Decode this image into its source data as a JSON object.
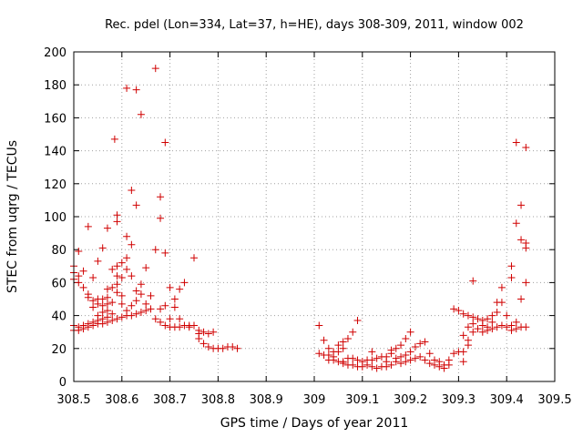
{
  "chart_data": {
    "type": "scatter",
    "title": "Rec. pdel (Lon=334, Lat=37, h=HE), days 308-309, 2011, window 002",
    "xlabel": "GPS time / Days of year 2011",
    "ylabel": "STEC from uqrg / TECUs",
    "xlim": [
      308.5,
      309.5
    ],
    "ylim": [
      0,
      200
    ],
    "xticks": [
      "308.5",
      "308.6",
      "308.7",
      "308.8",
      "308.9",
      "309",
      "309.1",
      "309.2",
      "309.3",
      "309.4",
      "309.5"
    ],
    "yticks": [
      "0",
      "20",
      "40",
      "60",
      "80",
      "100",
      "120",
      "140",
      "160",
      "180",
      "200"
    ],
    "grid": true,
    "marker": "+",
    "color": "#d00000",
    "points": [
      [
        308.5,
        31
      ],
      [
        308.5,
        34
      ],
      [
        308.5,
        62
      ],
      [
        308.5,
        66
      ],
      [
        308.5,
        70
      ],
      [
        308.51,
        31
      ],
      [
        308.51,
        33
      ],
      [
        308.51,
        60
      ],
      [
        308.51,
        64
      ],
      [
        308.51,
        79
      ],
      [
        308.52,
        32
      ],
      [
        308.52,
        34
      ],
      [
        308.52,
        57
      ],
      [
        308.52,
        67
      ],
      [
        308.53,
        33
      ],
      [
        308.53,
        35
      ],
      [
        308.53,
        51
      ],
      [
        308.53,
        53
      ],
      [
        308.53,
        94
      ],
      [
        308.54,
        34
      ],
      [
        308.54,
        36
      ],
      [
        308.54,
        45
      ],
      [
        308.54,
        49
      ],
      [
        308.54,
        63
      ],
      [
        308.55,
        35
      ],
      [
        308.55,
        37
      ],
      [
        308.55,
        40
      ],
      [
        308.55,
        47
      ],
      [
        308.55,
        50
      ],
      [
        308.55,
        73
      ],
      [
        308.56,
        35
      ],
      [
        308.56,
        38
      ],
      [
        308.56,
        42
      ],
      [
        308.56,
        46
      ],
      [
        308.56,
        50
      ],
      [
        308.56,
        81
      ],
      [
        308.57,
        36
      ],
      [
        308.57,
        39
      ],
      [
        308.57,
        43
      ],
      [
        308.57,
        47
      ],
      [
        308.57,
        51
      ],
      [
        308.57,
        56
      ],
      [
        308.57,
        93
      ],
      [
        308.58,
        37
      ],
      [
        308.58,
        41
      ],
      [
        308.58,
        48
      ],
      [
        308.58,
        57
      ],
      [
        308.58,
        68
      ],
      [
        308.585,
        147
      ],
      [
        308.59,
        38
      ],
      [
        308.59,
        54
      ],
      [
        308.59,
        59
      ],
      [
        308.59,
        64
      ],
      [
        308.59,
        70
      ],
      [
        308.59,
        97
      ],
      [
        308.59,
        101
      ],
      [
        308.6,
        39
      ],
      [
        308.6,
        47
      ],
      [
        308.6,
        52
      ],
      [
        308.6,
        63
      ],
      [
        308.6,
        72
      ],
      [
        308.61,
        40
      ],
      [
        308.61,
        43
      ],
      [
        308.61,
        68
      ],
      [
        308.61,
        75
      ],
      [
        308.61,
        88
      ],
      [
        308.61,
        178
      ],
      [
        308.62,
        40
      ],
      [
        308.62,
        46
      ],
      [
        308.62,
        64
      ],
      [
        308.62,
        83
      ],
      [
        308.62,
        116
      ],
      [
        308.63,
        41
      ],
      [
        308.63,
        49
      ],
      [
        308.63,
        55
      ],
      [
        308.63,
        107
      ],
      [
        308.63,
        177
      ],
      [
        308.64,
        42
      ],
      [
        308.64,
        53
      ],
      [
        308.64,
        59
      ],
      [
        308.64,
        162
      ],
      [
        308.65,
        43
      ],
      [
        308.65,
        47
      ],
      [
        308.65,
        69
      ],
      [
        308.66,
        44
      ],
      [
        308.66,
        52
      ],
      [
        308.67,
        38
      ],
      [
        308.67,
        80
      ],
      [
        308.67,
        190
      ],
      [
        308.68,
        36
      ],
      [
        308.68,
        44
      ],
      [
        308.68,
        99
      ],
      [
        308.68,
        112
      ],
      [
        308.69,
        34
      ],
      [
        308.69,
        46
      ],
      [
        308.69,
        78
      ],
      [
        308.69,
        145
      ],
      [
        308.7,
        33
      ],
      [
        308.7,
        38
      ],
      [
        308.7,
        57
      ],
      [
        308.71,
        33
      ],
      [
        308.71,
        45
      ],
      [
        308.71,
        50
      ],
      [
        308.72,
        33
      ],
      [
        308.72,
        38
      ],
      [
        308.72,
        56
      ],
      [
        308.73,
        34
      ],
      [
        308.73,
        60
      ],
      [
        308.74,
        34
      ],
      [
        308.74,
        33
      ],
      [
        308.75,
        34
      ],
      [
        308.75,
        75
      ],
      [
        308.76,
        31
      ],
      [
        308.76,
        29
      ],
      [
        308.76,
        26
      ],
      [
        308.77,
        30
      ],
      [
        308.77,
        23
      ],
      [
        308.78,
        29
      ],
      [
        308.78,
        21
      ],
      [
        308.79,
        30
      ],
      [
        308.79,
        20
      ],
      [
        308.8,
        20
      ],
      [
        308.81,
        20
      ],
      [
        308.82,
        21
      ],
      [
        308.83,
        21
      ],
      [
        308.84,
        20
      ],
      [
        309.01,
        34
      ],
      [
        309.01,
        17
      ],
      [
        309.02,
        16
      ],
      [
        309.02,
        25
      ],
      [
        309.03,
        13
      ],
      [
        309.03,
        16
      ],
      [
        309.03,
        20
      ],
      [
        309.04,
        13
      ],
      [
        309.04,
        15
      ],
      [
        309.04,
        18
      ],
      [
        309.05,
        12
      ],
      [
        309.05,
        18
      ],
      [
        309.05,
        22
      ],
      [
        309.06,
        11
      ],
      [
        309.06,
        12
      ],
      [
        309.06,
        20
      ],
      [
        309.06,
        24
      ],
      [
        309.07,
        10
      ],
      [
        309.07,
        14
      ],
      [
        309.07,
        26
      ],
      [
        309.08,
        10
      ],
      [
        309.08,
        14
      ],
      [
        309.08,
        30
      ],
      [
        309.09,
        9
      ],
      [
        309.09,
        13
      ],
      [
        309.09,
        37
      ],
      [
        309.1,
        9
      ],
      [
        309.1,
        12
      ],
      [
        309.11,
        10
      ],
      [
        309.11,
        13
      ],
      [
        309.12,
        9
      ],
      [
        309.12,
        13
      ],
      [
        309.12,
        18
      ],
      [
        309.13,
        8
      ],
      [
        309.13,
        14
      ],
      [
        309.14,
        9
      ],
      [
        309.14,
        15
      ],
      [
        309.15,
        15
      ],
      [
        309.15,
        12
      ],
      [
        309.15,
        9
      ],
      [
        309.16,
        17
      ],
      [
        309.16,
        19
      ],
      [
        309.16,
        10
      ],
      [
        309.17,
        14
      ],
      [
        309.17,
        20
      ],
      [
        309.17,
        12
      ],
      [
        309.18,
        15
      ],
      [
        309.18,
        22
      ],
      [
        309.18,
        11
      ],
      [
        309.19,
        16
      ],
      [
        309.19,
        26
      ],
      [
        309.19,
        12
      ],
      [
        309.2,
        18
      ],
      [
        309.2,
        30
      ],
      [
        309.2,
        13
      ],
      [
        309.21,
        21
      ],
      [
        309.21,
        14
      ],
      [
        309.22,
        23
      ],
      [
        309.22,
        15
      ],
      [
        309.23,
        24
      ],
      [
        309.23,
        13
      ],
      [
        309.24,
        17
      ],
      [
        309.24,
        11
      ],
      [
        309.25,
        13
      ],
      [
        309.25,
        10
      ],
      [
        309.26,
        12
      ],
      [
        309.26,
        9
      ],
      [
        309.27,
        10
      ],
      [
        309.27,
        8
      ],
      [
        309.28,
        13
      ],
      [
        309.28,
        10
      ],
      [
        309.29,
        17
      ],
      [
        309.29,
        44
      ],
      [
        309.3,
        18
      ],
      [
        309.3,
        43
      ],
      [
        309.31,
        12
      ],
      [
        309.31,
        41
      ],
      [
        309.31,
        28
      ],
      [
        309.31,
        18
      ],
      [
        309.32,
        40
      ],
      [
        309.32,
        33
      ],
      [
        309.32,
        25
      ],
      [
        309.32,
        22
      ],
      [
        309.33,
        39
      ],
      [
        309.33,
        35
      ],
      [
        309.33,
        30
      ],
      [
        309.33,
        61
      ],
      [
        309.34,
        38
      ],
      [
        309.34,
        32
      ],
      [
        309.35,
        37
      ],
      [
        309.35,
        30
      ],
      [
        309.35,
        34
      ],
      [
        309.36,
        38
      ],
      [
        309.36,
        31
      ],
      [
        309.36,
        33
      ],
      [
        309.37,
        40
      ],
      [
        309.37,
        32
      ],
      [
        309.37,
        36
      ],
      [
        309.38,
        42
      ],
      [
        309.38,
        33
      ],
      [
        309.38,
        48
      ],
      [
        309.39,
        34
      ],
      [
        309.39,
        48
      ],
      [
        309.39,
        57
      ],
      [
        309.4,
        33
      ],
      [
        309.4,
        40
      ],
      [
        309.41,
        31
      ],
      [
        309.41,
        34
      ],
      [
        309.41,
        63
      ],
      [
        309.41,
        70
      ],
      [
        309.42,
        32
      ],
      [
        309.42,
        36
      ],
      [
        309.42,
        96
      ],
      [
        309.42,
        145
      ],
      [
        309.43,
        33
      ],
      [
        309.43,
        50
      ],
      [
        309.43,
        86
      ],
      [
        309.43,
        107
      ],
      [
        309.44,
        33
      ],
      [
        309.44,
        60
      ],
      [
        309.44,
        81
      ],
      [
        309.44,
        84
      ],
      [
        309.44,
        142
      ]
    ]
  }
}
